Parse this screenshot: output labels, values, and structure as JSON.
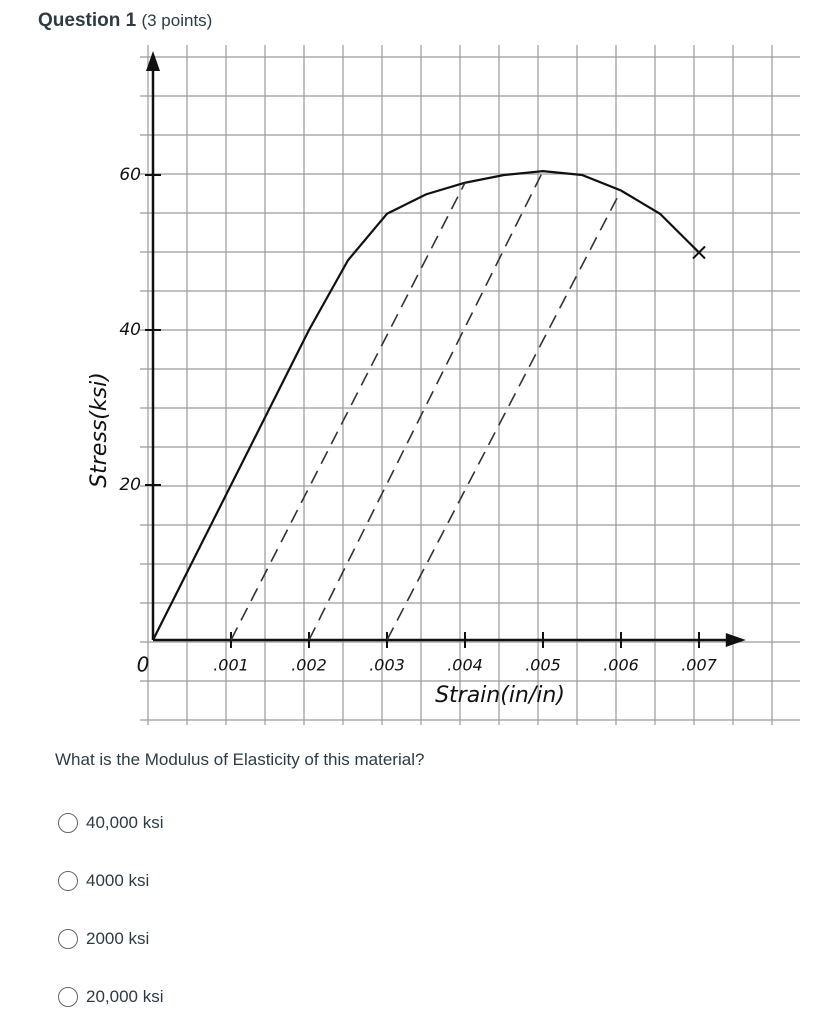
{
  "header": {
    "title": "Question 1",
    "points": "(3 points)"
  },
  "chart_data": {
    "type": "line",
    "xlabel": "Strain(in/in)",
    "ylabel": "Stress(ksi)",
    "xlim": [
      0,
      0.0076
    ],
    "ylim": [
      0,
      76
    ],
    "xticks": [
      {
        "value": 0,
        "label": "0"
      },
      {
        "value": 0.001,
        "label": ".001"
      },
      {
        "value": 0.002,
        "label": ".002"
      },
      {
        "value": 0.003,
        "label": ".003"
      },
      {
        "value": 0.004,
        "label": ".004"
      },
      {
        "value": 0.005,
        "label": ".005"
      },
      {
        "value": 0.006,
        "label": ".006"
      },
      {
        "value": 0.007,
        "label": ".007"
      }
    ],
    "yticks": [
      20,
      40,
      60
    ],
    "series": [
      {
        "color": "#111111",
        "end_marker": "x",
        "x": [
          0,
          0.001,
          0.002,
          0.0025,
          0.003,
          0.0035,
          0.004,
          0.0045,
          0.005,
          0.0055,
          0.006,
          0.0065,
          0.007
        ],
        "values": [
          0,
          20,
          40,
          49,
          55,
          57.5,
          59,
          60,
          60.5,
          60,
          58,
          55,
          50
        ]
      },
      {
        "color": "#333333",
        "style": "dashed",
        "x": [
          0.001,
          0.004
        ],
        "values": [
          0,
          59
        ]
      },
      {
        "color": "#333333",
        "style": "dashed",
        "x": [
          0.002,
          0.005
        ],
        "values": [
          0,
          60.5
        ]
      },
      {
        "color": "#333333",
        "style": "dashed",
        "x": [
          0.003,
          0.006
        ],
        "values": [
          0,
          58
        ]
      }
    ]
  },
  "question": {
    "text": "What is the Modulus of Elasticity of this material?",
    "options": [
      "40,000 ksi",
      "4000 ksi",
      "2000 ksi",
      "20,000 ksi"
    ]
  }
}
